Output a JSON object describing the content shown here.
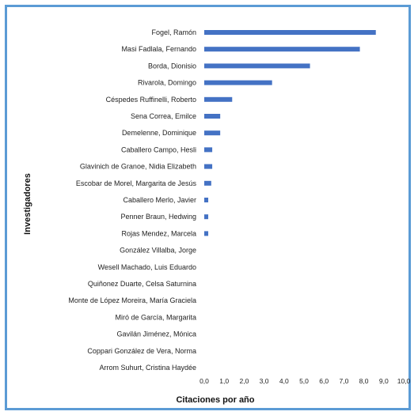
{
  "chart_data": {
    "type": "bar",
    "orientation": "horizontal",
    "xlabel": "Citaciones por año",
    "ylabel": "Investigadores",
    "xlim": [
      0,
      10
    ],
    "xticks": [
      "0,0",
      "1,0",
      "2,0",
      "3,0",
      "4,0",
      "5,0",
      "6,0",
      "7,0",
      "8,0",
      "9,0",
      "10,0"
    ],
    "grid": false,
    "bar_color": "#4472c4",
    "categories": [
      "Fogel, Ramón",
      "Masi Fadlala, Fernando",
      "Borda, Dionisio",
      "Rivarola, Domingo",
      "Céspedes Ruffinelli, Roberto",
      "Sena Correa, Emilce",
      "Demelenne, Dominique",
      "Caballero Campo, Hesli",
      "Glavinich de Granoe, Nidia Elizabeth",
      "Escobar de Morel, Margarita de Jesús",
      "Caballero Merlo, Javier",
      "Penner Braun, Hedwing",
      "Rojas Mendez, Marcela",
      "González Villalba, Jorge",
      "Wesell Machado, Luis Eduardo",
      "Quiñonez Duarte, Celsa Saturnina",
      "Monte de López Moreira, María Graciela",
      "Miró de García, Margarita",
      "Gavilán Jiménez, Mónica",
      "Coppari González de Vera, Norma",
      "Arrom Suhurt, Cristina Haydée"
    ],
    "values": [
      8.6,
      7.8,
      5.3,
      3.4,
      1.4,
      0.8,
      0.8,
      0.4,
      0.4,
      0.35,
      0.2,
      0.2,
      0.2,
      0,
      0,
      0,
      0,
      0,
      0,
      0,
      0
    ]
  }
}
